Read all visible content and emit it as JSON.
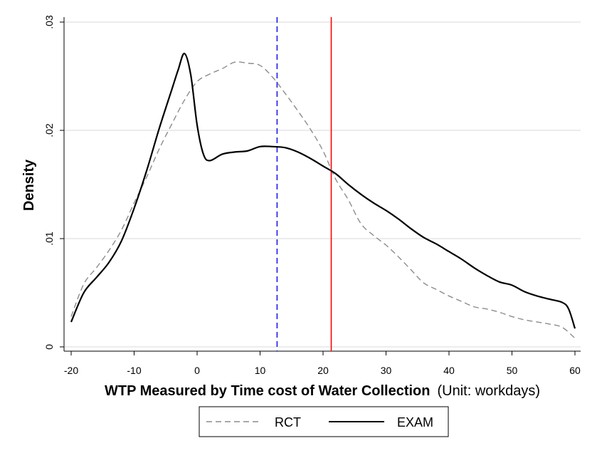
{
  "chart_data": {
    "type": "line",
    "xlabel": "WTP Measured by Time cost of Water Collection",
    "xlabel_unit": "(Unit: workdays)",
    "ylabel": "Density",
    "xlim": [
      -20,
      60
    ],
    "ylim": [
      0,
      0.03
    ],
    "x_ticks": [
      "-20",
      "-10",
      "0",
      "10",
      "20",
      "30",
      "40",
      "50",
      "60"
    ],
    "y_ticks": [
      "0",
      ".01",
      ".02",
      ".03"
    ],
    "grid": true,
    "legend_position": "bottom",
    "vlines": [
      {
        "series": "RCT",
        "x": 12.7,
        "style": "dashed",
        "color": "#1a1af0"
      },
      {
        "series": "EXAM",
        "x": 21.3,
        "style": "solid",
        "color": "#ff0000"
      }
    ],
    "series": [
      {
        "name": "RCT",
        "style": "dashed",
        "color": "#8c8c8c",
        "x": [
          -20,
          -18,
          -16,
          -14,
          -12,
          -10,
          -8,
          -6,
          -4,
          -2,
          0,
          2,
          4,
          6,
          8,
          10,
          12,
          14,
          16,
          18,
          20,
          22,
          24,
          26,
          28,
          30,
          32,
          34,
          36,
          38,
          40,
          42,
          44,
          46,
          48,
          50,
          52,
          54,
          56,
          58,
          60
        ],
        "y": [
          0.0028,
          0.0058,
          0.0073,
          0.0089,
          0.0108,
          0.0133,
          0.0157,
          0.0183,
          0.0206,
          0.0228,
          0.0245,
          0.0252,
          0.0257,
          0.0263,
          0.0262,
          0.026,
          0.0249,
          0.0234,
          0.0218,
          0.0201,
          0.0181,
          0.0155,
          0.0136,
          0.0114,
          0.0103,
          0.0094,
          0.0083,
          0.0071,
          0.0059,
          0.0053,
          0.0047,
          0.0042,
          0.0037,
          0.0035,
          0.0032,
          0.0028,
          0.0025,
          0.0023,
          0.0021,
          0.0018,
          0.0008
        ]
      },
      {
        "name": "EXAM",
        "style": "solid",
        "color": "#000000",
        "x": [
          -20,
          -18,
          -16,
          -14,
          -12,
          -10,
          -8,
          -6,
          -4,
          -3,
          -2,
          -1,
          0,
          1,
          2,
          4,
          6,
          8,
          10,
          12,
          14,
          16,
          18,
          20,
          22,
          24,
          26,
          28,
          30,
          32,
          34,
          36,
          38,
          40,
          42,
          44,
          46,
          48,
          50,
          52,
          54,
          56,
          58,
          59,
          60
        ],
        "y": [
          0.0023,
          0.005,
          0.0064,
          0.0078,
          0.0098,
          0.0128,
          0.0163,
          0.0202,
          0.0238,
          0.0256,
          0.0271,
          0.0251,
          0.0205,
          0.0178,
          0.0172,
          0.0178,
          0.018,
          0.0181,
          0.0185,
          0.0185,
          0.0184,
          0.018,
          0.0174,
          0.0167,
          0.016,
          0.015,
          0.0141,
          0.0133,
          0.0126,
          0.0118,
          0.0109,
          0.0101,
          0.0095,
          0.0088,
          0.0081,
          0.0073,
          0.0066,
          0.006,
          0.0057,
          0.0051,
          0.0047,
          0.0044,
          0.0041,
          0.0035,
          0.0017
        ]
      }
    ]
  }
}
